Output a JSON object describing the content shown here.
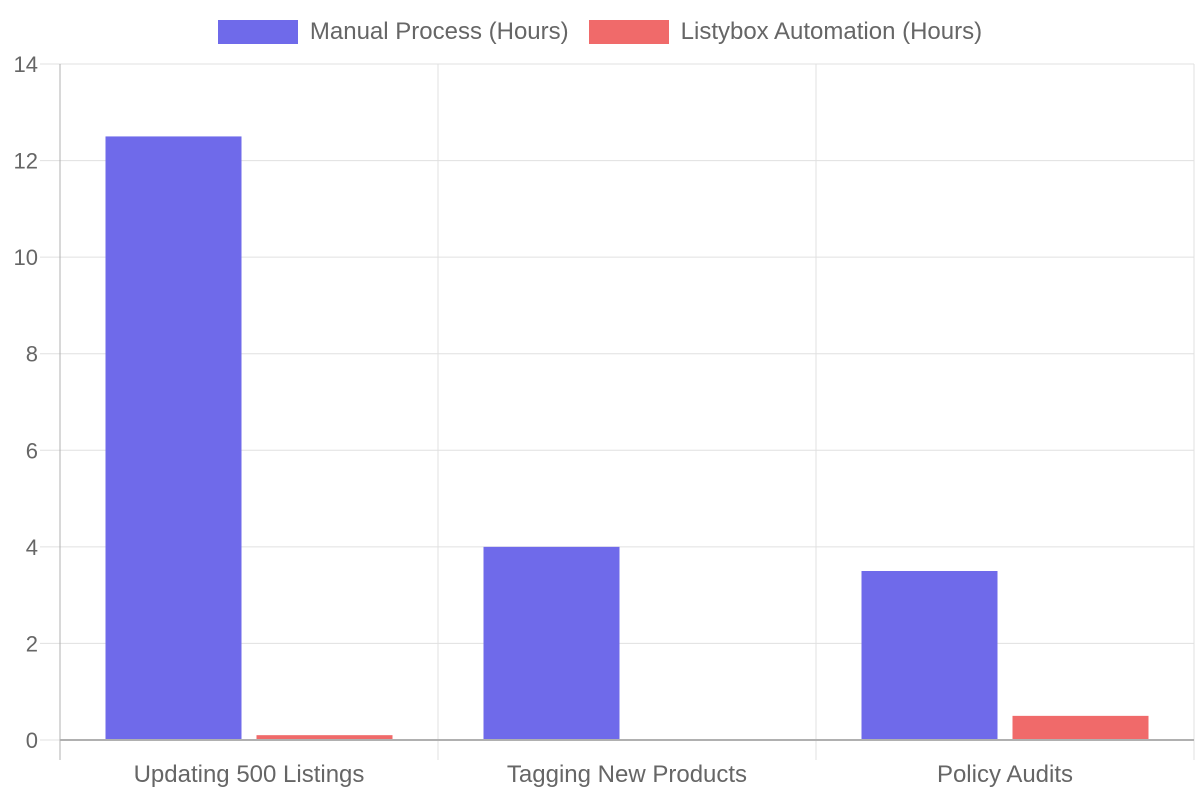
{
  "colors": {
    "manual": "#6f6aea",
    "automation": "#f06a6a",
    "grid": "#e0e0e0",
    "axis": "#b0b0b0",
    "text": "#666666"
  },
  "legend": {
    "items": [
      {
        "label": "Manual Process (Hours)",
        "color": "#6f6aea"
      },
      {
        "label": "Listybox Automation (Hours)",
        "color": "#f06a6a"
      }
    ]
  },
  "chart_data": {
    "type": "bar",
    "title": "",
    "xlabel": "",
    "ylabel": "",
    "categories": [
      "Updating 500 Listings",
      "Tagging New Products",
      "Policy Audits"
    ],
    "series": [
      {
        "name": "Manual Process (Hours)",
        "values": [
          12.5,
          4,
          3.5
        ]
      },
      {
        "name": "Listybox Automation (Hours)",
        "values": [
          0.1,
          0,
          0.5
        ]
      }
    ],
    "ylim": [
      0,
      14
    ],
    "yticks": [
      "0",
      "2",
      "4",
      "6",
      "8",
      "10",
      "12",
      "14"
    ],
    "grid": true,
    "legend_position": "top"
  }
}
